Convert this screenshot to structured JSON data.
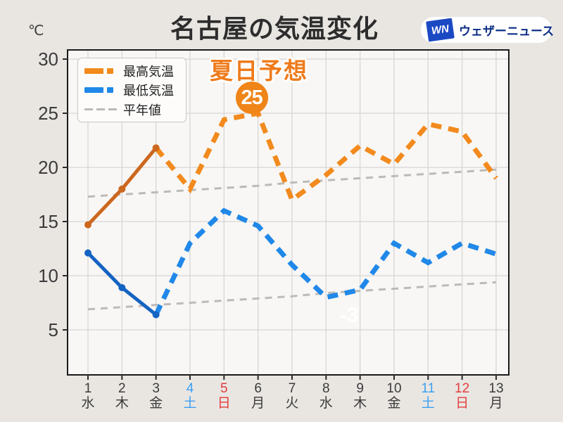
{
  "header": {
    "unit_label": "℃",
    "title": "名古屋の気温変化",
    "logo": {
      "mark": "WN",
      "name": "ウェザーニュース"
    }
  },
  "legend": {
    "items": [
      {
        "label": "最高気温",
        "key": "max"
      },
      {
        "label": "最低気温",
        "key": "min"
      },
      {
        "label": "平年値",
        "key": "normal"
      }
    ]
  },
  "annotations": {
    "summer_day_label": "夏日予想",
    "badge": {
      "text": "25",
      "day": 6,
      "value": 25
    },
    "faint_label": {
      "text": "-3"
    }
  },
  "chart_data": {
    "type": "line",
    "title": "名古屋の気温変化",
    "ylabel": "℃",
    "ylim": [
      1,
      31
    ],
    "y_ticks": [
      5,
      10,
      15,
      20,
      25,
      30
    ],
    "grid": true,
    "legend_position": "upper-left",
    "x_labels": [
      {
        "day": "1",
        "weekday": "水",
        "kind": "weekday"
      },
      {
        "day": "2",
        "weekday": "木",
        "kind": "weekday"
      },
      {
        "day": "3",
        "weekday": "金",
        "kind": "weekday"
      },
      {
        "day": "4",
        "weekday": "土",
        "kind": "saturday"
      },
      {
        "day": "5",
        "weekday": "日",
        "kind": "sunday"
      },
      {
        "day": "6",
        "weekday": "月",
        "kind": "weekday"
      },
      {
        "day": "7",
        "weekday": "火",
        "kind": "weekday"
      },
      {
        "day": "8",
        "weekday": "水",
        "kind": "weekday"
      },
      {
        "day": "9",
        "weekday": "木",
        "kind": "weekday"
      },
      {
        "day": "10",
        "weekday": "金",
        "kind": "weekday"
      },
      {
        "day": "11",
        "weekday": "土",
        "kind": "saturday"
      },
      {
        "day": "12",
        "weekday": "日",
        "kind": "sunday"
      },
      {
        "day": "13",
        "weekday": "月",
        "kind": "weekday"
      }
    ],
    "series": [
      {
        "name": "最高気温",
        "role": "max",
        "solid_days": 3,
        "values": [
          14.7,
          18,
          21.8,
          18,
          24.4,
          25,
          17,
          19.3,
          22,
          20.3,
          24,
          23.3,
          19
        ]
      },
      {
        "name": "最低気温",
        "role": "min",
        "solid_days": 3,
        "values": [
          12.1,
          8.9,
          6.4,
          13,
          16,
          14.6,
          11,
          8,
          8.7,
          13,
          11.2,
          13,
          12
        ]
      },
      {
        "name": "平年値(最高気温)",
        "role": "normal_high",
        "values": [
          17.3,
          17.5,
          17.7,
          17.9,
          18.1,
          18.3,
          18.6,
          18.8,
          19.0,
          19.2,
          19.4,
          19.6,
          19.8
        ]
      },
      {
        "name": "平年値(最低気温)",
        "role": "normal_low",
        "values": [
          6.9,
          7.1,
          7.3,
          7.5,
          7.7,
          7.9,
          8.1,
          8.4,
          8.6,
          8.8,
          9.0,
          9.2,
          9.4
        ]
      }
    ]
  },
  "colors": {
    "max_dash": "#f28a1d",
    "max_solid": "#cc671e",
    "min_dash": "#2088e8",
    "min_solid": "#1463c2",
    "normal": "#bcbab7",
    "grid": "#d8d6d3",
    "plot_bg": "#f8f7f5",
    "plot_border": "#1a1a1a",
    "axis_text": "#3b3b3b",
    "saturday": "#3da0f2",
    "sunday": "#e23c3c",
    "annotation": "#ee7b1b",
    "badge_bg": "#ef8418",
    "badge_text": "#ffffff",
    "logo_box": "#1b49c4",
    "logo_text": "#0d2f86",
    "title_text": "#2d2d2d"
  }
}
